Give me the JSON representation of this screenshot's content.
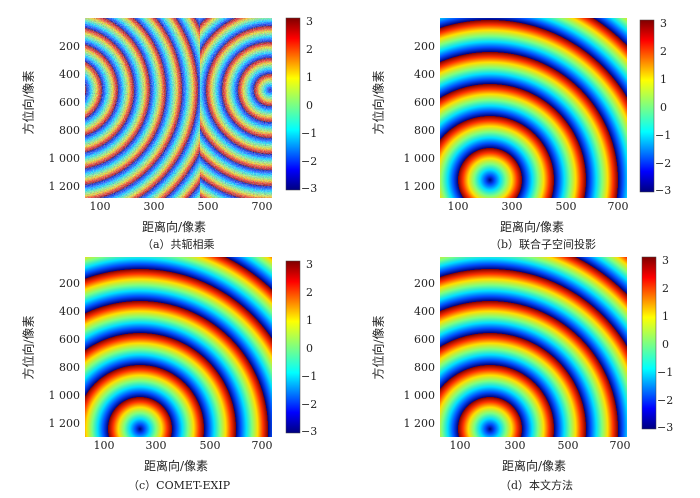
{
  "figure": {
    "panels": [
      {
        "id": "a",
        "caption": "（a）共轭相乘"
      },
      {
        "id": "b",
        "caption": "（b）联合子空间投影"
      },
      {
        "id": "c",
        "caption": "（c）COMET-EXIP"
      },
      {
        "id": "d",
        "caption": "（d）本文方法"
      }
    ],
    "ylabel": "方位向/像素",
    "xlabel": "距离向/像素",
    "yticks": [
      "200",
      "400",
      "600",
      "800",
      "1 000",
      "1 200"
    ],
    "xticks": [
      "100",
      "300",
      "500",
      "700"
    ],
    "colorbar_ticks": [
      "3",
      "2",
      "1",
      "0",
      "−1",
      "−2",
      "−3"
    ],
    "colormap": "jet",
    "colorbar_range": [
      -3,
      3
    ]
  }
}
